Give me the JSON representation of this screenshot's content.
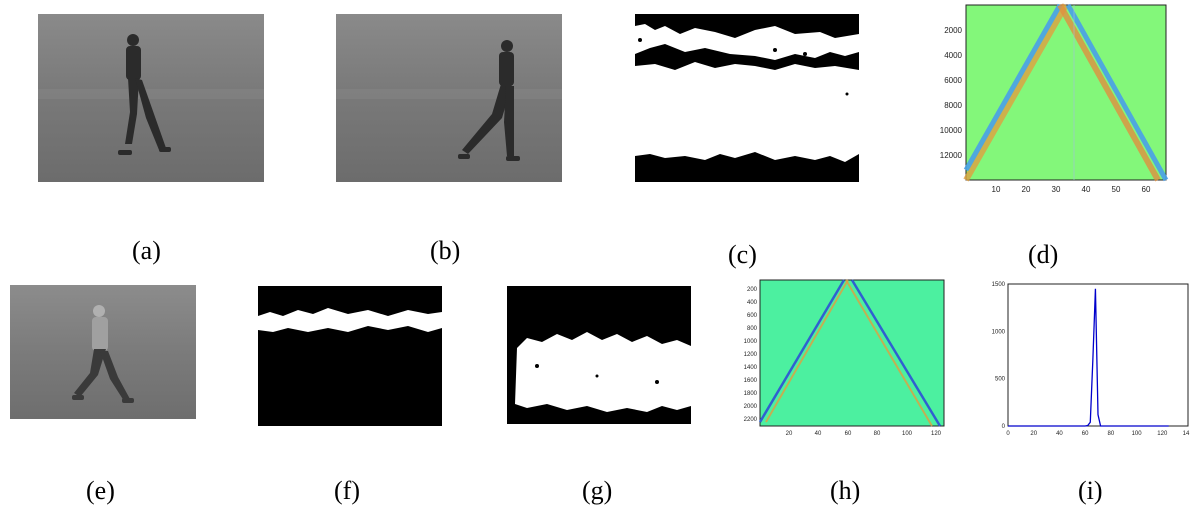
{
  "captions": {
    "a": "(a)",
    "b": "(b)",
    "c": "(c)",
    "d": "(d)",
    "e": "(e)",
    "f": "(f)",
    "g": "(g)",
    "h": "(h)",
    "i": "(i)"
  },
  "panel_d": {
    "x_ticks": [
      "10",
      "20",
      "30",
      "40",
      "50",
      "60"
    ],
    "y_ticks": [
      "2000",
      "4000",
      "6000",
      "8000",
      "10000",
      "12000"
    ]
  },
  "panel_h": {
    "x_ticks": [
      "20",
      "40",
      "60",
      "80",
      "100",
      "120"
    ],
    "y_ticks": [
      "200",
      "400",
      "600",
      "800",
      "1000",
      "1200",
      "1400",
      "1600",
      "1800",
      "2000",
      "2200"
    ]
  },
  "chart_data": {
    "type": "line",
    "x": [
      0,
      60,
      62,
      64,
      66,
      68,
      70,
      72,
      125
    ],
    "values": [
      0,
      0,
      5,
      40,
      700,
      1450,
      120,
      0,
      0
    ],
    "x_ticks": [
      "0",
      "20",
      "40",
      "60",
      "80",
      "100",
      "120",
      "14"
    ],
    "y_ticks": [
      "0",
      "500",
      "1000",
      "1500"
    ],
    "xlim": [
      0,
      140
    ],
    "ylim": [
      0,
      1500
    ],
    "color": "#0000cc"
  }
}
